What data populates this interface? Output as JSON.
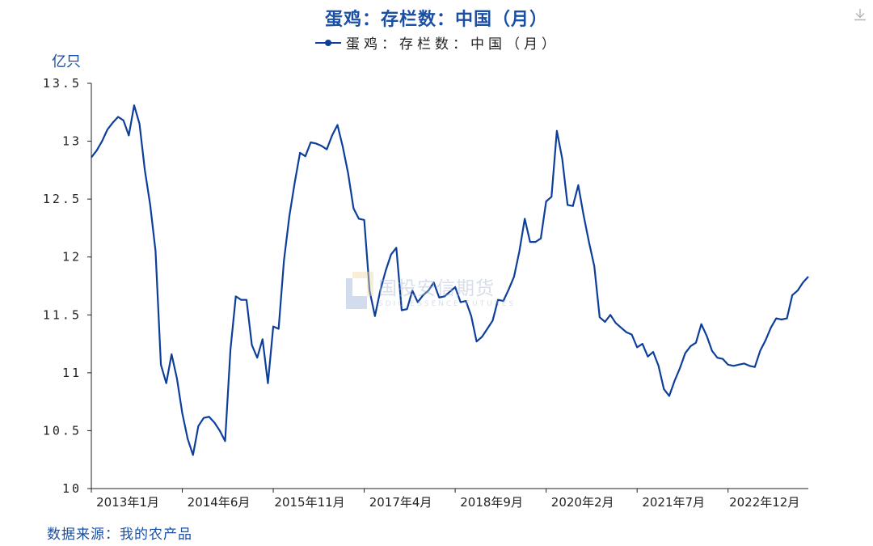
{
  "title": "蛋鸡：存栏数：中国（月）",
  "legend_label": "蛋鸡：存栏数：中国（月）",
  "unit_label": "亿只",
  "source": "数据来源：我的农产品",
  "watermark": {
    "cn": "国投安信期货",
    "en": "SDIC ESSENCE FUTURES"
  },
  "icons": {
    "download": "download-icon"
  },
  "colors": {
    "line": "#0d3f9a",
    "text_accent": "#1a4fa3",
    "axis": "#222222"
  },
  "chart_data": {
    "type": "line",
    "title": "蛋鸡：存栏数：中国（月）",
    "ylabel": "亿只",
    "xlabel": "",
    "ylim": [
      10,
      13.5
    ],
    "yticks": [
      {
        "value": 10,
        "label": "10"
      },
      {
        "value": 10.5,
        "label": "10.5"
      },
      {
        "value": 11,
        "label": "11"
      },
      {
        "value": 11.5,
        "label": "11.5"
      },
      {
        "value": 12,
        "label": "12"
      },
      {
        "value": 12.5,
        "label": "12.5"
      },
      {
        "value": 13,
        "label": "13"
      },
      {
        "value": 13.5,
        "label": "13.5"
      }
    ],
    "xticks": [
      "2013年1月",
      "2014年6月",
      "2015年11月",
      "2017年4月",
      "2018年9月",
      "2020年2月",
      "2021年7月",
      "2022年12月"
    ],
    "x_start": "2013-01",
    "grid": false,
    "legend": "top-center",
    "series": [
      {
        "name": "蛋鸡：存栏数：中国（月）",
        "values": [
          12.86,
          12.92,
          13.0,
          13.1,
          13.16,
          13.21,
          13.18,
          13.05,
          13.31,
          13.15,
          12.75,
          12.45,
          12.05,
          11.07,
          10.91,
          11.16,
          10.95,
          10.65,
          10.43,
          10.29,
          10.54,
          10.61,
          10.62,
          10.57,
          10.5,
          10.41,
          11.2,
          11.66,
          11.63,
          11.63,
          11.24,
          11.13,
          11.29,
          10.91,
          11.4,
          11.38,
          11.97,
          12.35,
          12.64,
          12.9,
          12.87,
          12.99,
          12.98,
          12.96,
          12.93,
          13.05,
          13.14,
          12.95,
          12.72,
          12.42,
          12.33,
          12.32,
          11.71,
          11.49,
          11.71,
          11.88,
          12.02,
          12.08,
          11.54,
          11.55,
          11.71,
          11.61,
          11.67,
          11.71,
          11.78,
          11.65,
          11.66,
          11.7,
          11.74,
          11.61,
          11.62,
          11.49,
          11.27,
          11.31,
          11.38,
          11.45,
          11.63,
          11.62,
          11.72,
          11.83,
          12.05,
          12.33,
          12.13,
          12.13,
          12.16,
          12.48,
          12.52,
          13.09,
          12.85,
          12.45,
          12.44,
          12.62,
          12.36,
          12.13,
          11.92,
          11.48,
          11.44,
          11.5,
          11.43,
          11.39,
          11.35,
          11.33,
          11.22,
          11.25,
          11.14,
          11.18,
          11.06,
          10.86,
          10.8,
          10.93,
          11.04,
          11.17,
          11.23,
          11.26,
          11.42,
          11.32,
          11.19,
          11.13,
          11.12,
          11.07,
          11.06,
          11.07,
          11.08,
          11.06,
          11.05,
          11.19,
          11.28,
          11.39,
          11.47,
          11.46,
          11.47,
          11.67,
          11.71,
          11.78,
          11.83
        ]
      }
    ]
  }
}
